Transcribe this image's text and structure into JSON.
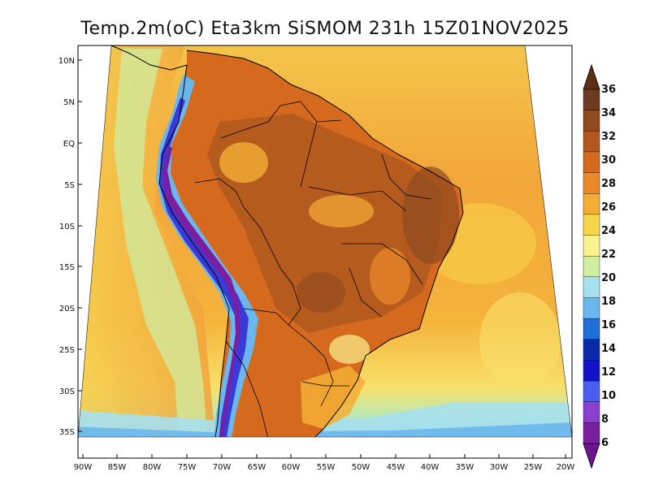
{
  "title": "Temp.2m(oC) Eta3km SiSMOM 231h 15Z01NOV2025",
  "lat_labels": [
    "10N",
    "5N",
    "EQ",
    "5S",
    "10S",
    "15S",
    "20S",
    "25S",
    "30S",
    "35S"
  ],
  "lon_labels": [
    "90W",
    "85W",
    "80W",
    "75W",
    "70W",
    "65W",
    "60W",
    "55W",
    "50W",
    "45W",
    "40W",
    "35W",
    "30W",
    "25W",
    "20W"
  ],
  "colorbar": {
    "labels": [
      "36",
      "34",
      "32",
      "30",
      "28",
      "26",
      "24",
      "22",
      "20",
      "18",
      "16",
      "14",
      "12",
      "10",
      "8",
      "6"
    ],
    "colors": [
      "#6b3a1f",
      "#8f4a20",
      "#b0581f",
      "#d56a1e",
      "#ec8a2b",
      "#f5ae35",
      "#f8d64a",
      "#fbf28f",
      "#cfeea0",
      "#a7e0ee",
      "#6ab7ee",
      "#1e6fd8",
      "#0a2aa8",
      "#1212c8",
      "#4b5cf0",
      "#8a3fcf",
      "#7a1fa0"
    ],
    "top_arrow_color": "#5a2f16",
    "bottom_arrow_color": "#6a1490"
  },
  "colors": {
    "ocean_warm": "#f2a43a",
    "ocean_cool": "#f8d64a",
    "land_hot": "#c9621e",
    "land_mid": "#e0802a",
    "andes_cold": "#3a3ad8",
    "andes_core": "#7a1fa0",
    "border": "#000000"
  }
}
